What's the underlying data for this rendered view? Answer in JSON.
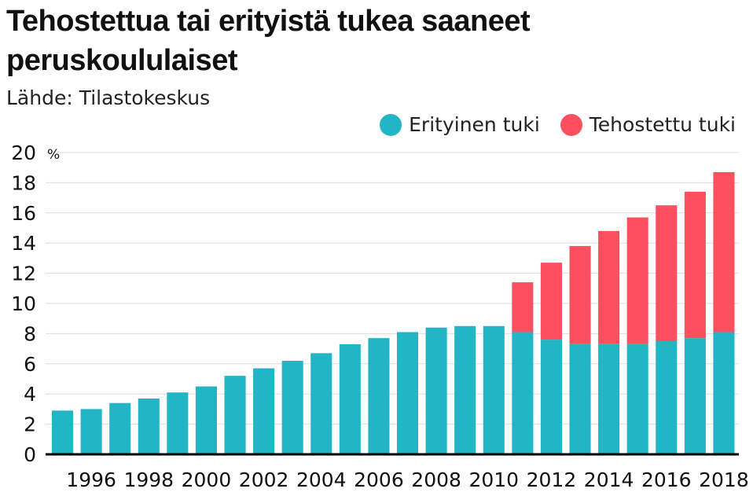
{
  "header": {
    "title": "Tehostettua tai erityistä tukea saaneet peruskoululaiset",
    "source": "Lähde: Tilastokeskus"
  },
  "colors": {
    "erityinen": "#21b5c6",
    "tehostettu": "#fc5060",
    "grid": "#dddddd",
    "baseline": "#000000"
  },
  "chart_data": {
    "type": "bar",
    "stacked": true,
    "title": "Tehostettua tai erityistä tukea saaneet peruskoululaiset",
    "source": "Lähde: Tilastokeskus",
    "unit": "%",
    "ylim": [
      0,
      20
    ],
    "y_ticks": [
      0,
      2,
      4,
      6,
      8,
      10,
      12,
      14,
      16,
      18,
      20
    ],
    "x_tick_labels": [
      "1996",
      "1998",
      "2000",
      "2002",
      "2004",
      "2006",
      "2008",
      "2010",
      "2012",
      "2014",
      "2016",
      "2018"
    ],
    "grid": true,
    "legend_position": "top-right",
    "categories": [
      "1995",
      "1996",
      "1997",
      "1998",
      "1999",
      "2000",
      "2001",
      "2002",
      "2003",
      "2004",
      "2005",
      "2006",
      "2007",
      "2008",
      "2009",
      "2010",
      "2011",
      "2012",
      "2013",
      "2014",
      "2015",
      "2016",
      "2017",
      "2018"
    ],
    "series": [
      {
        "name": "Erityinen tuki",
        "values": [
          2.9,
          3.0,
          3.4,
          3.7,
          4.1,
          4.5,
          5.2,
          5.7,
          6.2,
          6.7,
          7.3,
          7.7,
          8.1,
          8.4,
          8.5,
          8.5,
          8.1,
          7.6,
          7.3,
          7.3,
          7.3,
          7.5,
          7.7,
          8.1
        ]
      },
      {
        "name": "Tehostettu tuki",
        "values": [
          0,
          0,
          0,
          0,
          0,
          0,
          0,
          0,
          0,
          0,
          0,
          0,
          0,
          0,
          0,
          0,
          3.3,
          5.1,
          6.5,
          7.5,
          8.4,
          9.0,
          9.7,
          10.6
        ]
      }
    ]
  }
}
